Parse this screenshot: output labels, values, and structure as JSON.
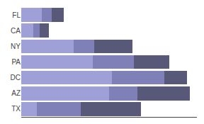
{
  "chart_data": {
    "type": "bar",
    "orientation": "horizontal",
    "stacked": true,
    "categories": [
      "FL",
      "CA",
      "NY",
      "PA",
      "DC",
      "AZ",
      "TX"
    ],
    "series": [
      {
        "color": "#a0a0d8",
        "values": [
          38,
          22,
          95,
          130,
          165,
          160,
          28
        ]
      },
      {
        "color": "#8080b8",
        "values": [
          18,
          12,
          38,
          75,
          95,
          52,
          80
        ]
      },
      {
        "color": "#585878",
        "values": [
          22,
          16,
          70,
          65,
          42,
          95,
          110
        ]
      }
    ],
    "xlim": [
      0,
      320
    ],
    "grid": false,
    "tick_labels": "y"
  }
}
